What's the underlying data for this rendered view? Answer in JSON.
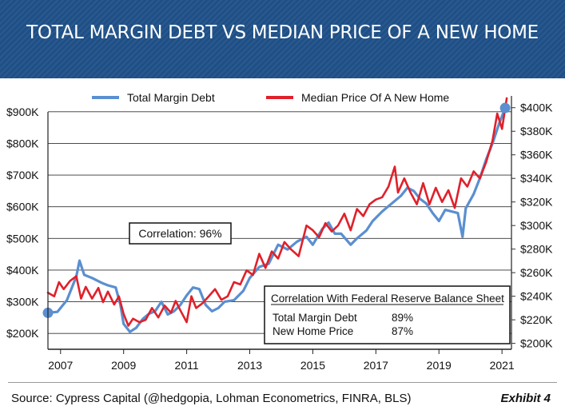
{
  "header": {
    "title": "TOTAL MARGIN DEBT VS MEDIAN PRICE OF A NEW HOME"
  },
  "footer": {
    "source": "Source: Cypress Capital (@hedgopia, Lohman Econometrics, FINRA, BLS)",
    "exhibit": "Exhibit 4"
  },
  "chart_data": {
    "type": "line",
    "colors": {
      "margin_debt": "#5b8fd0",
      "home_price": "#e0202a",
      "header_bg": "#1e4f86"
    },
    "legend": [
      {
        "label": "Total Margin Debt",
        "series": "margin_debt"
      },
      {
        "label": "Median Price Of A New Home",
        "series": "home_price"
      }
    ],
    "legend_position": "top",
    "grid": "horizontal",
    "x_axis": {
      "range": [
        2006.6,
        2021.3
      ],
      "ticks": [
        "2007",
        "2009",
        "2011",
        "2013",
        "2015",
        "2017",
        "2019",
        "2021"
      ]
    },
    "y_left": {
      "range": [
        150,
        950
      ],
      "ticks": [
        "$200K",
        "$300K",
        "$400K",
        "$500K",
        "$600K",
        "$700K",
        "$800K",
        "$900K"
      ]
    },
    "y_right": {
      "range": [
        195,
        410
      ],
      "ticks": [
        "$200K",
        "$220K",
        "$240K",
        "$260K",
        "$280K",
        "$300K",
        "$320K",
        "$340K",
        "$360K",
        "$380K",
        "$400K"
      ]
    },
    "annotation": "Correlation: 96%",
    "table": {
      "title": "Correlation With Federal Reserve Balance Sheet",
      "rows": [
        {
          "label": "Total Margin Debt",
          "value": "89%"
        },
        {
          "label": "New Home Price",
          "value": "87%"
        }
      ]
    },
    "series": [
      {
        "name": "Total Margin Debt",
        "key": "margin_debt",
        "axis": "left",
        "points": [
          [
            2006.6,
            265
          ],
          [
            2006.9,
            268
          ],
          [
            2007.2,
            305
          ],
          [
            2007.5,
            380
          ],
          [
            2007.6,
            430
          ],
          [
            2007.75,
            385
          ],
          [
            2008.0,
            375
          ],
          [
            2008.3,
            360
          ],
          [
            2008.5,
            352
          ],
          [
            2008.75,
            345
          ],
          [
            2008.9,
            290
          ],
          [
            2009.0,
            230
          ],
          [
            2009.2,
            205
          ],
          [
            2009.4,
            218
          ],
          [
            2009.6,
            245
          ],
          [
            2009.8,
            262
          ],
          [
            2010.0,
            270
          ],
          [
            2010.2,
            300
          ],
          [
            2010.4,
            260
          ],
          [
            2010.6,
            270
          ],
          [
            2010.8,
            290
          ],
          [
            2011.0,
            320
          ],
          [
            2011.2,
            345
          ],
          [
            2011.4,
            340
          ],
          [
            2011.6,
            290
          ],
          [
            2011.8,
            270
          ],
          [
            2012.0,
            280
          ],
          [
            2012.2,
            300
          ],
          [
            2012.5,
            305
          ],
          [
            2012.8,
            335
          ],
          [
            2013.0,
            375
          ],
          [
            2013.3,
            410
          ],
          [
            2013.6,
            420
          ],
          [
            2013.9,
            480
          ],
          [
            2014.2,
            465
          ],
          [
            2014.5,
            490
          ],
          [
            2014.8,
            505
          ],
          [
            2015.0,
            480
          ],
          [
            2015.3,
            530
          ],
          [
            2015.5,
            550
          ],
          [
            2015.7,
            515
          ],
          [
            2015.9,
            515
          ],
          [
            2016.2,
            480
          ],
          [
            2016.4,
            500
          ],
          [
            2016.7,
            525
          ],
          [
            2016.9,
            555
          ],
          [
            2017.2,
            585
          ],
          [
            2017.5,
            610
          ],
          [
            2017.8,
            635
          ],
          [
            2018.0,
            660
          ],
          [
            2018.2,
            650
          ],
          [
            2018.4,
            625
          ],
          [
            2018.6,
            610
          ],
          [
            2018.8,
            580
          ],
          [
            2019.0,
            555
          ],
          [
            2019.2,
            590
          ],
          [
            2019.4,
            585
          ],
          [
            2019.6,
            580
          ],
          [
            2019.75,
            505
          ],
          [
            2019.85,
            595
          ],
          [
            2020.1,
            640
          ],
          [
            2020.3,
            690
          ],
          [
            2020.5,
            750
          ],
          [
            2020.7,
            800
          ],
          [
            2020.9,
            860
          ],
          [
            2021.1,
            912
          ]
        ]
      },
      {
        "name": "Median Price Of A New Home",
        "key": "home_price",
        "axis": "right",
        "points": [
          [
            2006.6,
            243
          ],
          [
            2006.8,
            240
          ],
          [
            2006.95,
            252
          ],
          [
            2007.1,
            246
          ],
          [
            2007.3,
            253
          ],
          [
            2007.5,
            257
          ],
          [
            2007.65,
            238
          ],
          [
            2007.8,
            248
          ],
          [
            2008.0,
            238
          ],
          [
            2008.2,
            247
          ],
          [
            2008.35,
            235
          ],
          [
            2008.5,
            244
          ],
          [
            2008.7,
            233
          ],
          [
            2008.85,
            240
          ],
          [
            2009.0,
            225
          ],
          [
            2009.15,
            215
          ],
          [
            2009.3,
            221
          ],
          [
            2009.5,
            218
          ],
          [
            2009.7,
            220
          ],
          [
            2009.9,
            230
          ],
          [
            2010.1,
            222
          ],
          [
            2010.3,
            232
          ],
          [
            2010.5,
            226
          ],
          [
            2010.65,
            236
          ],
          [
            2010.8,
            228
          ],
          [
            2011.0,
            218
          ],
          [
            2011.15,
            240
          ],
          [
            2011.3,
            230
          ],
          [
            2011.5,
            234
          ],
          [
            2011.7,
            240
          ],
          [
            2011.9,
            246
          ],
          [
            2012.1,
            237
          ],
          [
            2012.3,
            240
          ],
          [
            2012.5,
            252
          ],
          [
            2012.7,
            250
          ],
          [
            2012.9,
            262
          ],
          [
            2013.1,
            258
          ],
          [
            2013.3,
            276
          ],
          [
            2013.5,
            264
          ],
          [
            2013.7,
            278
          ],
          [
            2013.9,
            272
          ],
          [
            2014.1,
            286
          ],
          [
            2014.3,
            280
          ],
          [
            2014.55,
            274
          ],
          [
            2014.8,
            300
          ],
          [
            2015.0,
            296
          ],
          [
            2015.2,
            290
          ],
          [
            2015.4,
            302
          ],
          [
            2015.6,
            295
          ],
          [
            2015.8,
            300
          ],
          [
            2016.0,
            310
          ],
          [
            2016.2,
            296
          ],
          [
            2016.4,
            314
          ],
          [
            2016.6,
            308
          ],
          [
            2016.8,
            318
          ],
          [
            2017.0,
            322
          ],
          [
            2017.2,
            324
          ],
          [
            2017.4,
            333
          ],
          [
            2017.6,
            350
          ],
          [
            2017.7,
            328
          ],
          [
            2017.9,
            340
          ],
          [
            2018.1,
            328
          ],
          [
            2018.3,
            318
          ],
          [
            2018.5,
            336
          ],
          [
            2018.7,
            318
          ],
          [
            2018.9,
            332
          ],
          [
            2019.1,
            320
          ],
          [
            2019.3,
            330
          ],
          [
            2019.5,
            315
          ],
          [
            2019.7,
            340
          ],
          [
            2019.9,
            333
          ],
          [
            2020.1,
            346
          ],
          [
            2020.3,
            340
          ],
          [
            2020.5,
            354
          ],
          [
            2020.7,
            372
          ],
          [
            2020.85,
            395
          ],
          [
            2021.0,
            382
          ],
          [
            2021.15,
            408
          ]
        ]
      }
    ],
    "markers": [
      {
        "series": "margin_debt",
        "x": 2006.6,
        "y": 265
      },
      {
        "series": "margin_debt",
        "x": 2021.1,
        "y": 912
      }
    ]
  }
}
